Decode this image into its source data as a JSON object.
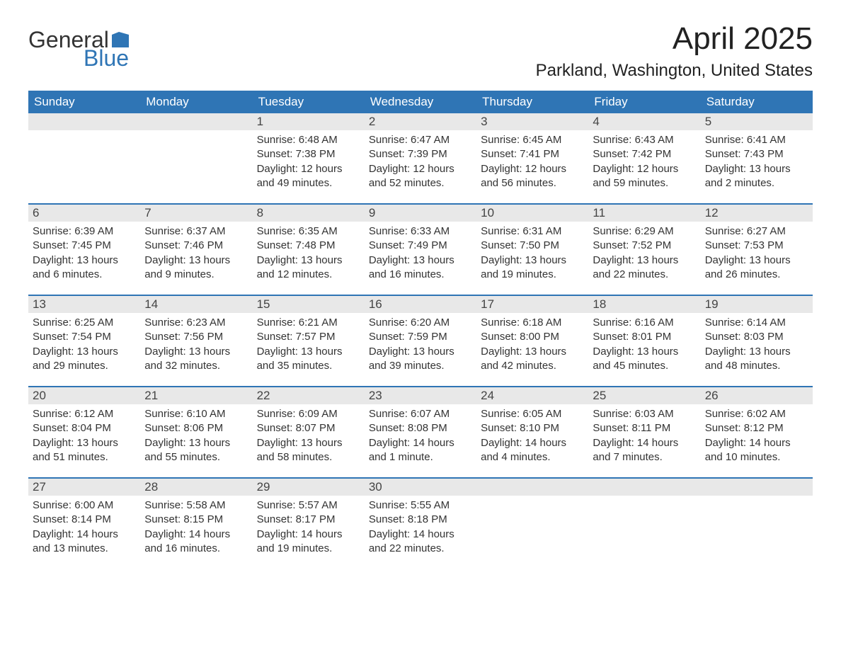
{
  "brand": {
    "word1": "General",
    "word2": "Blue",
    "flag_color": "#2f75b5"
  },
  "title": "April 2025",
  "location": "Parkland, Washington, United States",
  "colors": {
    "header_bg": "#2f75b5",
    "header_text": "#ffffff",
    "daynum_bg": "#e8e8e8",
    "body_bg": "#ffffff",
    "text": "#333333",
    "row_border": "#2f75b5"
  },
  "day_headers": [
    "Sunday",
    "Monday",
    "Tuesday",
    "Wednesday",
    "Thursday",
    "Friday",
    "Saturday"
  ],
  "weeks": [
    [
      {
        "n": "",
        "sunrise": "",
        "sunset": "",
        "daylight": ""
      },
      {
        "n": "",
        "sunrise": "",
        "sunset": "",
        "daylight": ""
      },
      {
        "n": "1",
        "sunrise": "Sunrise: 6:48 AM",
        "sunset": "Sunset: 7:38 PM",
        "daylight": "Daylight: 12 hours and 49 minutes."
      },
      {
        "n": "2",
        "sunrise": "Sunrise: 6:47 AM",
        "sunset": "Sunset: 7:39 PM",
        "daylight": "Daylight: 12 hours and 52 minutes."
      },
      {
        "n": "3",
        "sunrise": "Sunrise: 6:45 AM",
        "sunset": "Sunset: 7:41 PM",
        "daylight": "Daylight: 12 hours and 56 minutes."
      },
      {
        "n": "4",
        "sunrise": "Sunrise: 6:43 AM",
        "sunset": "Sunset: 7:42 PM",
        "daylight": "Daylight: 12 hours and 59 minutes."
      },
      {
        "n": "5",
        "sunrise": "Sunrise: 6:41 AM",
        "sunset": "Sunset: 7:43 PM",
        "daylight": "Daylight: 13 hours and 2 minutes."
      }
    ],
    [
      {
        "n": "6",
        "sunrise": "Sunrise: 6:39 AM",
        "sunset": "Sunset: 7:45 PM",
        "daylight": "Daylight: 13 hours and 6 minutes."
      },
      {
        "n": "7",
        "sunrise": "Sunrise: 6:37 AM",
        "sunset": "Sunset: 7:46 PM",
        "daylight": "Daylight: 13 hours and 9 minutes."
      },
      {
        "n": "8",
        "sunrise": "Sunrise: 6:35 AM",
        "sunset": "Sunset: 7:48 PM",
        "daylight": "Daylight: 13 hours and 12 minutes."
      },
      {
        "n": "9",
        "sunrise": "Sunrise: 6:33 AM",
        "sunset": "Sunset: 7:49 PM",
        "daylight": "Daylight: 13 hours and 16 minutes."
      },
      {
        "n": "10",
        "sunrise": "Sunrise: 6:31 AM",
        "sunset": "Sunset: 7:50 PM",
        "daylight": "Daylight: 13 hours and 19 minutes."
      },
      {
        "n": "11",
        "sunrise": "Sunrise: 6:29 AM",
        "sunset": "Sunset: 7:52 PM",
        "daylight": "Daylight: 13 hours and 22 minutes."
      },
      {
        "n": "12",
        "sunrise": "Sunrise: 6:27 AM",
        "sunset": "Sunset: 7:53 PM",
        "daylight": "Daylight: 13 hours and 26 minutes."
      }
    ],
    [
      {
        "n": "13",
        "sunrise": "Sunrise: 6:25 AM",
        "sunset": "Sunset: 7:54 PM",
        "daylight": "Daylight: 13 hours and 29 minutes."
      },
      {
        "n": "14",
        "sunrise": "Sunrise: 6:23 AM",
        "sunset": "Sunset: 7:56 PM",
        "daylight": "Daylight: 13 hours and 32 minutes."
      },
      {
        "n": "15",
        "sunrise": "Sunrise: 6:21 AM",
        "sunset": "Sunset: 7:57 PM",
        "daylight": "Daylight: 13 hours and 35 minutes."
      },
      {
        "n": "16",
        "sunrise": "Sunrise: 6:20 AM",
        "sunset": "Sunset: 7:59 PM",
        "daylight": "Daylight: 13 hours and 39 minutes."
      },
      {
        "n": "17",
        "sunrise": "Sunrise: 6:18 AM",
        "sunset": "Sunset: 8:00 PM",
        "daylight": "Daylight: 13 hours and 42 minutes."
      },
      {
        "n": "18",
        "sunrise": "Sunrise: 6:16 AM",
        "sunset": "Sunset: 8:01 PM",
        "daylight": "Daylight: 13 hours and 45 minutes."
      },
      {
        "n": "19",
        "sunrise": "Sunrise: 6:14 AM",
        "sunset": "Sunset: 8:03 PM",
        "daylight": "Daylight: 13 hours and 48 minutes."
      }
    ],
    [
      {
        "n": "20",
        "sunrise": "Sunrise: 6:12 AM",
        "sunset": "Sunset: 8:04 PM",
        "daylight": "Daylight: 13 hours and 51 minutes."
      },
      {
        "n": "21",
        "sunrise": "Sunrise: 6:10 AM",
        "sunset": "Sunset: 8:06 PM",
        "daylight": "Daylight: 13 hours and 55 minutes."
      },
      {
        "n": "22",
        "sunrise": "Sunrise: 6:09 AM",
        "sunset": "Sunset: 8:07 PM",
        "daylight": "Daylight: 13 hours and 58 minutes."
      },
      {
        "n": "23",
        "sunrise": "Sunrise: 6:07 AM",
        "sunset": "Sunset: 8:08 PM",
        "daylight": "Daylight: 14 hours and 1 minute."
      },
      {
        "n": "24",
        "sunrise": "Sunrise: 6:05 AM",
        "sunset": "Sunset: 8:10 PM",
        "daylight": "Daylight: 14 hours and 4 minutes."
      },
      {
        "n": "25",
        "sunrise": "Sunrise: 6:03 AM",
        "sunset": "Sunset: 8:11 PM",
        "daylight": "Daylight: 14 hours and 7 minutes."
      },
      {
        "n": "26",
        "sunrise": "Sunrise: 6:02 AM",
        "sunset": "Sunset: 8:12 PM",
        "daylight": "Daylight: 14 hours and 10 minutes."
      }
    ],
    [
      {
        "n": "27",
        "sunrise": "Sunrise: 6:00 AM",
        "sunset": "Sunset: 8:14 PM",
        "daylight": "Daylight: 14 hours and 13 minutes."
      },
      {
        "n": "28",
        "sunrise": "Sunrise: 5:58 AM",
        "sunset": "Sunset: 8:15 PM",
        "daylight": "Daylight: 14 hours and 16 minutes."
      },
      {
        "n": "29",
        "sunrise": "Sunrise: 5:57 AM",
        "sunset": "Sunset: 8:17 PM",
        "daylight": "Daylight: 14 hours and 19 minutes."
      },
      {
        "n": "30",
        "sunrise": "Sunrise: 5:55 AM",
        "sunset": "Sunset: 8:18 PM",
        "daylight": "Daylight: 14 hours and 22 minutes."
      },
      {
        "n": "",
        "sunrise": "",
        "sunset": "",
        "daylight": ""
      },
      {
        "n": "",
        "sunrise": "",
        "sunset": "",
        "daylight": ""
      },
      {
        "n": "",
        "sunrise": "",
        "sunset": "",
        "daylight": ""
      }
    ]
  ]
}
